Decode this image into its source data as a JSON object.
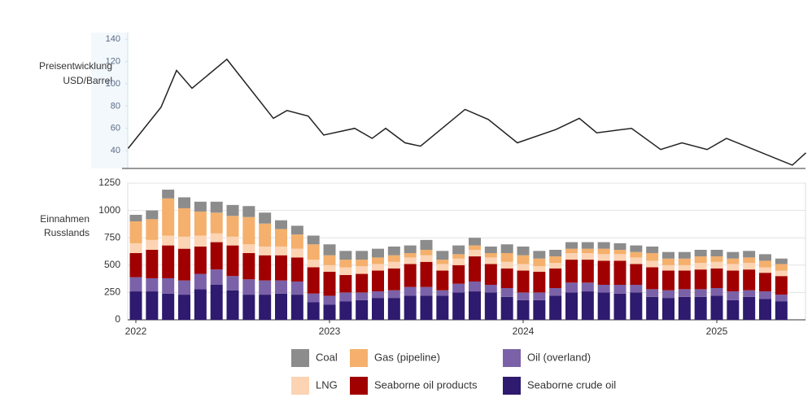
{
  "chart_data": [
    {
      "type": "line",
      "y_label_lines": [
        "Preisentwicklung",
        "USD/Barrel"
      ],
      "color": "#222222",
      "x": [
        2021.96,
        2022.13,
        2022.21,
        2022.29,
        2022.47,
        2022.71,
        2022.78,
        2022.89,
        2022.97,
        2023.13,
        2023.22,
        2023.29,
        2023.39,
        2023.47,
        2023.7,
        2023.82,
        2023.97,
        2024.17,
        2024.29,
        2024.38,
        2024.56,
        2024.71,
        2024.82,
        2024.95,
        2025.05,
        2025.39,
        2025.46
      ],
      "values": [
        42,
        79,
        112,
        96,
        122,
        69,
        76,
        71,
        54,
        60,
        51,
        60,
        47,
        44,
        77,
        68,
        47,
        59,
        69,
        56,
        60,
        41,
        47,
        41,
        51,
        27,
        38
      ],
      "ylim": [
        24,
        146
      ],
      "yticks": [
        40,
        60,
        80,
        100,
        120,
        140
      ]
    },
    {
      "type": "stacked_bar",
      "y_label_lines": [
        "Einnahmen",
        "Russlands"
      ],
      "grid": true,
      "categories": [
        "2022",
        null,
        null,
        null,
        null,
        null,
        null,
        null,
        null,
        null,
        null,
        null,
        "2023",
        null,
        null,
        null,
        null,
        null,
        null,
        null,
        null,
        null,
        null,
        null,
        "2024",
        null,
        null,
        null,
        null,
        null,
        null,
        null,
        null,
        null,
        null,
        null,
        "2025",
        null,
        null,
        null,
        null
      ],
      "ylim": [
        0,
        1250
      ],
      "yticks": [
        0,
        250,
        500,
        750,
        1000,
        1250
      ],
      "series": [
        {
          "name": "Seaborne crude oil",
          "color": "#2e1a6e",
          "values": [
            260,
            260,
            240,
            230,
            280,
            320,
            270,
            230,
            230,
            240,
            230,
            160,
            140,
            170,
            180,
            200,
            200,
            220,
            220,
            220,
            250,
            260,
            250,
            210,
            180,
            180,
            220,
            250,
            260,
            250,
            240,
            250,
            210,
            200,
            210,
            210,
            220,
            180,
            210,
            190,
            170
          ]
        },
        {
          "name": "Oil (overland)",
          "color": "#7b62a8",
          "values": [
            130,
            120,
            140,
            130,
            140,
            140,
            130,
            140,
            130,
            120,
            120,
            80,
            80,
            80,
            70,
            60,
            70,
            80,
            80,
            50,
            80,
            90,
            70,
            80,
            70,
            70,
            70,
            90,
            80,
            70,
            80,
            70,
            70,
            70,
            70,
            70,
            70,
            80,
            60,
            70,
            60
          ]
        },
        {
          "name": "Seaborne oil products",
          "color": "#a00000",
          "values": [
            220,
            260,
            300,
            290,
            250,
            250,
            280,
            240,
            230,
            230,
            220,
            240,
            220,
            160,
            170,
            190,
            200,
            210,
            230,
            180,
            170,
            230,
            190,
            180,
            200,
            190,
            180,
            210,
            210,
            220,
            220,
            190,
            200,
            180,
            170,
            180,
            180,
            190,
            190,
            170,
            170
          ]
        },
        {
          "name": "LNG",
          "color": "#fcd3b3",
          "values": [
            90,
            90,
            90,
            110,
            100,
            80,
            80,
            80,
            80,
            80,
            80,
            70,
            60,
            70,
            70,
            60,
            60,
            60,
            60,
            60,
            60,
            60,
            60,
            60,
            60,
            50,
            50,
            60,
            60,
            60,
            60,
            60,
            60,
            50,
            50,
            60,
            60,
            60,
            60,
            50,
            50
          ]
        },
        {
          "name": "Gas (pipeline)",
          "color": "#f4b06c",
          "values": [
            200,
            190,
            340,
            260,
            220,
            190,
            190,
            250,
            210,
            160,
            130,
            140,
            90,
            70,
            60,
            60,
            60,
            40,
            50,
            40,
            40,
            40,
            40,
            80,
            80,
            70,
            60,
            40,
            40,
            50,
            40,
            50,
            70,
            60,
            60,
            60,
            50,
            50,
            50,
            60,
            60
          ]
        },
        {
          "name": "Coal",
          "color": "#8c8c8c",
          "values": [
            60,
            80,
            80,
            100,
            90,
            100,
            100,
            100,
            100,
            80,
            80,
            80,
            100,
            80,
            80,
            80,
            80,
            70,
            90,
            80,
            80,
            70,
            60,
            80,
            80,
            70,
            60,
            60,
            60,
            60,
            60,
            60,
            60,
            60,
            60,
            60,
            60,
            60,
            60,
            60,
            50
          ]
        }
      ]
    }
  ]
}
